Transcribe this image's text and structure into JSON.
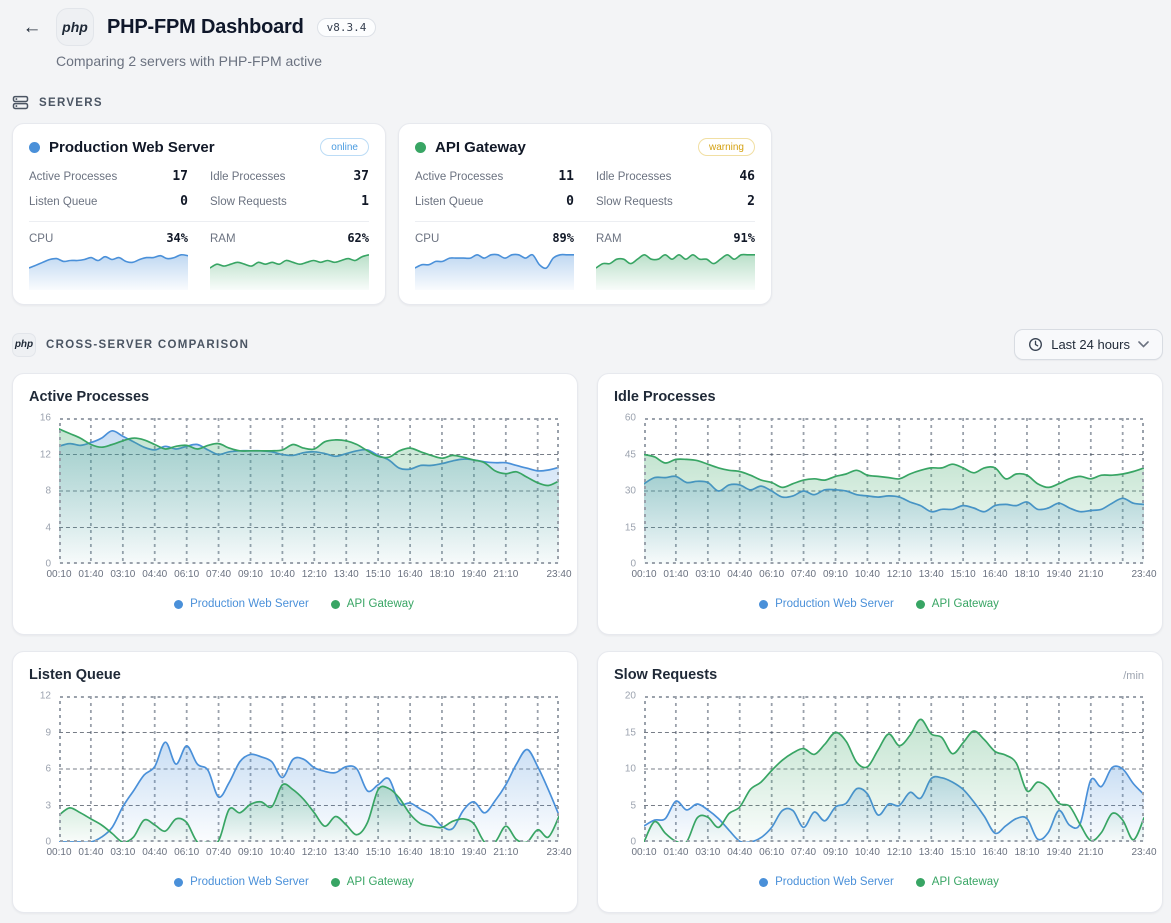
{
  "header": {
    "back_label": "←",
    "logo_text": "php",
    "title": "PHP-FPM Dashboard",
    "version": "v8.3.4",
    "subtitle": "Comparing 2 servers with PHP-FPM active"
  },
  "sections": {
    "servers_label": "SERVERS",
    "comparison_label": "CROSS-SERVER COMPARISON",
    "comparison_icon_text": "php"
  },
  "time_range": {
    "label": "Last 24 hours"
  },
  "colors": {
    "blue": "#4a90d9",
    "green": "#38a564",
    "online": "#4a9be0",
    "warning": "#d4a112"
  },
  "servers": [
    {
      "name": "Production Web Server",
      "dot_color": "#4a90d9",
      "status": "online",
      "status_color": "#4a9be0",
      "status_border": "#bcdcf6",
      "stats": [
        {
          "label": "Active Processes",
          "value": "17"
        },
        {
          "label": "Idle Processes",
          "value": "37"
        },
        {
          "label": "Listen Queue",
          "value": "0"
        },
        {
          "label": "Slow Requests",
          "value": "1"
        }
      ],
      "gauges": [
        {
          "label": "CPU",
          "value": "34%",
          "color": "#4a90d9",
          "spark": [
            24,
            27,
            30,
            33,
            34,
            31,
            32,
            32,
            33,
            35,
            32,
            36,
            33,
            35,
            31,
            30,
            33,
            35,
            35,
            37,
            34,
            35,
            38,
            37
          ]
        },
        {
          "label": "RAM",
          "value": "62%",
          "color": "#38a564",
          "spark": [
            58,
            60,
            59,
            60,
            61,
            60,
            59,
            61,
            60,
            61,
            60,
            62,
            61,
            60,
            61,
            62,
            61,
            62,
            61,
            62,
            63,
            62,
            64,
            65
          ]
        }
      ]
    },
    {
      "name": "API Gateway",
      "dot_color": "#38a564",
      "status": "warning",
      "status_color": "#d4a112",
      "status_border": "#f1dfa3",
      "stats": [
        {
          "label": "Active Processes",
          "value": "11"
        },
        {
          "label": "Idle Processes",
          "value": "46"
        },
        {
          "label": "Listen Queue",
          "value": "0"
        },
        {
          "label": "Slow Requests",
          "value": "2"
        }
      ],
      "gauges": [
        {
          "label": "CPU",
          "value": "89%",
          "color": "#4a90d9",
          "spark": [
            85,
            86,
            86,
            87,
            87,
            88,
            88,
            88,
            88,
            89,
            88,
            89,
            89,
            88,
            89,
            89,
            88,
            89,
            86,
            85,
            88,
            89,
            89,
            89
          ]
        },
        {
          "label": "RAM",
          "value": "91%",
          "color": "#38a564",
          "spark": [
            89,
            90,
            90,
            91,
            91,
            90,
            91,
            92,
            91,
            91,
            92,
            91,
            92,
            91,
            92,
            91,
            91,
            90,
            91,
            92,
            91,
            92,
            92,
            92
          ]
        }
      ]
    }
  ],
  "chart_data": [
    {
      "type": "area",
      "title": "Active Processes",
      "unit": "",
      "ylim": [
        0,
        16
      ],
      "yticks": [
        0,
        4,
        8,
        12,
        16
      ],
      "grid": true,
      "legend_position": "bottom",
      "x": [
        "00:10",
        "01:40",
        "03:10",
        "04:40",
        "06:10",
        "07:40",
        "09:10",
        "10:40",
        "12:10",
        "13:40",
        "15:10",
        "16:40",
        "18:10",
        "19:40",
        "21:10",
        "23:40"
      ],
      "series": [
        {
          "name": "Production Web Server",
          "color": "#4a90d9",
          "values": [
            12.9,
            13.2,
            13.0,
            13.3,
            13.8,
            14.6,
            14.0,
            13.4,
            12.8,
            12.5,
            12.9,
            12.6,
            12.9,
            13.1,
            12.5,
            12.0,
            12.3,
            12.4,
            12.4,
            12.4,
            12.3,
            12.0,
            11.9,
            12.2,
            12.3,
            12.1,
            11.8,
            12.1,
            12.4,
            12.5,
            11.9,
            11.4,
            10.5,
            10.4,
            10.8,
            10.8,
            11.0,
            11.3,
            11.5,
            11.4,
            11.2,
            11.1,
            11.1,
            10.8,
            10.5,
            10.2,
            10.3,
            10.6
          ]
        },
        {
          "name": "API Gateway",
          "color": "#38a564",
          "values": [
            14.8,
            14.3,
            13.8,
            13.1,
            12.8,
            13.1,
            13.5,
            13.8,
            13.6,
            13.1,
            12.6,
            12.9,
            13.0,
            12.6,
            13.0,
            13.2,
            12.7,
            12.4,
            12.4,
            12.4,
            12.4,
            12.5,
            13.1,
            12.7,
            12.6,
            13.4,
            13.6,
            13.5,
            13.1,
            12.4,
            11.8,
            11.7,
            12.4,
            12.7,
            12.3,
            11.9,
            11.6,
            11.9,
            11.7,
            11.4,
            11.1,
            10.2,
            9.9,
            10.1,
            9.5,
            8.9,
            8.6,
            9.1
          ]
        }
      ]
    },
    {
      "type": "area",
      "title": "Idle Processes",
      "unit": "",
      "ylim": [
        0,
        60
      ],
      "yticks": [
        0,
        15,
        30,
        45,
        60
      ],
      "grid": true,
      "legend_position": "bottom",
      "x": [
        "00:10",
        "01:40",
        "03:10",
        "04:40",
        "06:10",
        "07:40",
        "09:10",
        "10:40",
        "12:10",
        "13:40",
        "15:10",
        "16:40",
        "18:10",
        "19:40",
        "21:10",
        "23:40"
      ],
      "series": [
        {
          "name": "Production Web Server",
          "color": "#4a90d9",
          "values": [
            33,
            35.5,
            35.5,
            36,
            33.5,
            34,
            33.5,
            30,
            32.5,
            32.5,
            30.5,
            32,
            30,
            27.5,
            28,
            30,
            28.5,
            30.5,
            30.5,
            30,
            28.5,
            28,
            27.5,
            28,
            27.5,
            25.5,
            24,
            21.5,
            22.5,
            22.5,
            24,
            23,
            21.5,
            24,
            24.5,
            24,
            25.5,
            22.5,
            23,
            25,
            23,
            21.5,
            22,
            22.5,
            25,
            27,
            25,
            24.5
          ]
        },
        {
          "name": "API Gateway",
          "color": "#38a564",
          "values": [
            45,
            44,
            41.5,
            43,
            43,
            42.5,
            41,
            39.5,
            38.5,
            38,
            36.5,
            34.5,
            33.5,
            31.5,
            33,
            34.5,
            35,
            34.5,
            36,
            37,
            38.5,
            36.5,
            36,
            35.5,
            35,
            37,
            38.5,
            39.5,
            39.5,
            41,
            39.5,
            37.5,
            39.5,
            39.5,
            35,
            37,
            36.5,
            33,
            31.5,
            33,
            35,
            36,
            35,
            36.5,
            36.5,
            37,
            38,
            39.5
          ]
        }
      ]
    },
    {
      "type": "area",
      "title": "Listen Queue",
      "unit": "",
      "ylim": [
        0,
        12
      ],
      "yticks": [
        0,
        3,
        6,
        9,
        12
      ],
      "grid": true,
      "legend_position": "bottom",
      "x": [
        "00:10",
        "01:40",
        "03:10",
        "04:40",
        "06:10",
        "07:40",
        "09:10",
        "10:40",
        "12:10",
        "13:40",
        "15:10",
        "16:40",
        "18:10",
        "19:40",
        "21:10",
        "23:40"
      ],
      "series": [
        {
          "name": "Production Web Server",
          "color": "#4a90d9",
          "values": [
            0,
            0,
            0,
            0,
            0.4,
            1.2,
            2.9,
            4.2,
            5.5,
            6.2,
            8.2,
            6.4,
            7.9,
            6.4,
            5.9,
            3.7,
            4.9,
            6.6,
            7.2,
            7.0,
            6.6,
            5.3,
            6.8,
            6.8,
            6.1,
            5.8,
            5.7,
            6.2,
            6.0,
            4.2,
            4.7,
            5.2,
            3.2,
            3.2,
            2.7,
            2.2,
            1.3,
            1.1,
            2.6,
            3.3,
            2.4,
            3.4,
            4.7,
            6.4,
            7.6,
            6.2,
            4.3,
            2.2
          ]
        },
        {
          "name": "API Gateway",
          "color": "#38a564",
          "values": [
            2.2,
            2.8,
            2.4,
            1.9,
            1.4,
            0.7,
            0.0,
            0.4,
            1.8,
            1.4,
            0.9,
            1.9,
            1.6,
            0.0,
            0.0,
            0.1,
            2.7,
            2.4,
            3.1,
            3.3,
            2.9,
            4.7,
            4.3,
            3.5,
            2.4,
            1.3,
            2.1,
            1.4,
            0.6,
            1.6,
            4.3,
            4.4,
            3.6,
            2.3,
            1.5,
            1.3,
            1.2,
            1.7,
            1.9,
            1.5,
            0.0,
            0.0,
            1.3,
            0.2,
            0.0,
            1.0,
            0.4,
            2.1
          ]
        }
      ]
    },
    {
      "type": "area",
      "title": "Slow Requests",
      "unit": "/min",
      "ylim": [
        0,
        20
      ],
      "yticks": [
        0,
        5,
        10,
        15,
        20
      ],
      "grid": true,
      "legend_position": "bottom",
      "x": [
        "00:10",
        "01:40",
        "03:10",
        "04:40",
        "06:10",
        "07:40",
        "09:10",
        "10:40",
        "12:10",
        "13:40",
        "15:10",
        "16:40",
        "18:10",
        "19:40",
        "21:10",
        "23:40"
      ],
      "series": [
        {
          "name": "Production Web Server",
          "color": "#4a90d9",
          "values": [
            2.2,
            3.0,
            3.2,
            5.6,
            4.4,
            5.2,
            4.4,
            3.2,
            1.6,
            0.1,
            0.0,
            0.6,
            2.0,
            4.3,
            4.3,
            2.0,
            4.1,
            2.9,
            4.8,
            5.3,
            7.3,
            6.6,
            3.7,
            5.2,
            5.0,
            6.8,
            6.0,
            8.7,
            8.8,
            8.2,
            7.2,
            5.5,
            3.5,
            1.2,
            2.2,
            3.2,
            3.2,
            0.4,
            1.3,
            4.3,
            2.3,
            2.5,
            8.5,
            7.6,
            10.2,
            10.0,
            8.0,
            6.5
          ]
        },
        {
          "name": "API Gateway",
          "color": "#38a564",
          "values": [
            0.0,
            2.8,
            1.2,
            0.1,
            0.0,
            3.3,
            3.4,
            2.0,
            3.9,
            4.8,
            7.2,
            8.2,
            9.8,
            11.2,
            12.2,
            12.8,
            12.0,
            13.4,
            15.0,
            13.8,
            10.9,
            10.3,
            12.6,
            14.8,
            13.2,
            14.6,
            16.8,
            14.8,
            14.3,
            12.1,
            13.6,
            15.2,
            14.0,
            12.4,
            11.9,
            10.8,
            7.0,
            8.2,
            7.4,
            5.3,
            4.9,
            2.4,
            0.2,
            1.3,
            3.9,
            3.0,
            0.3,
            3.3
          ]
        }
      ]
    }
  ]
}
